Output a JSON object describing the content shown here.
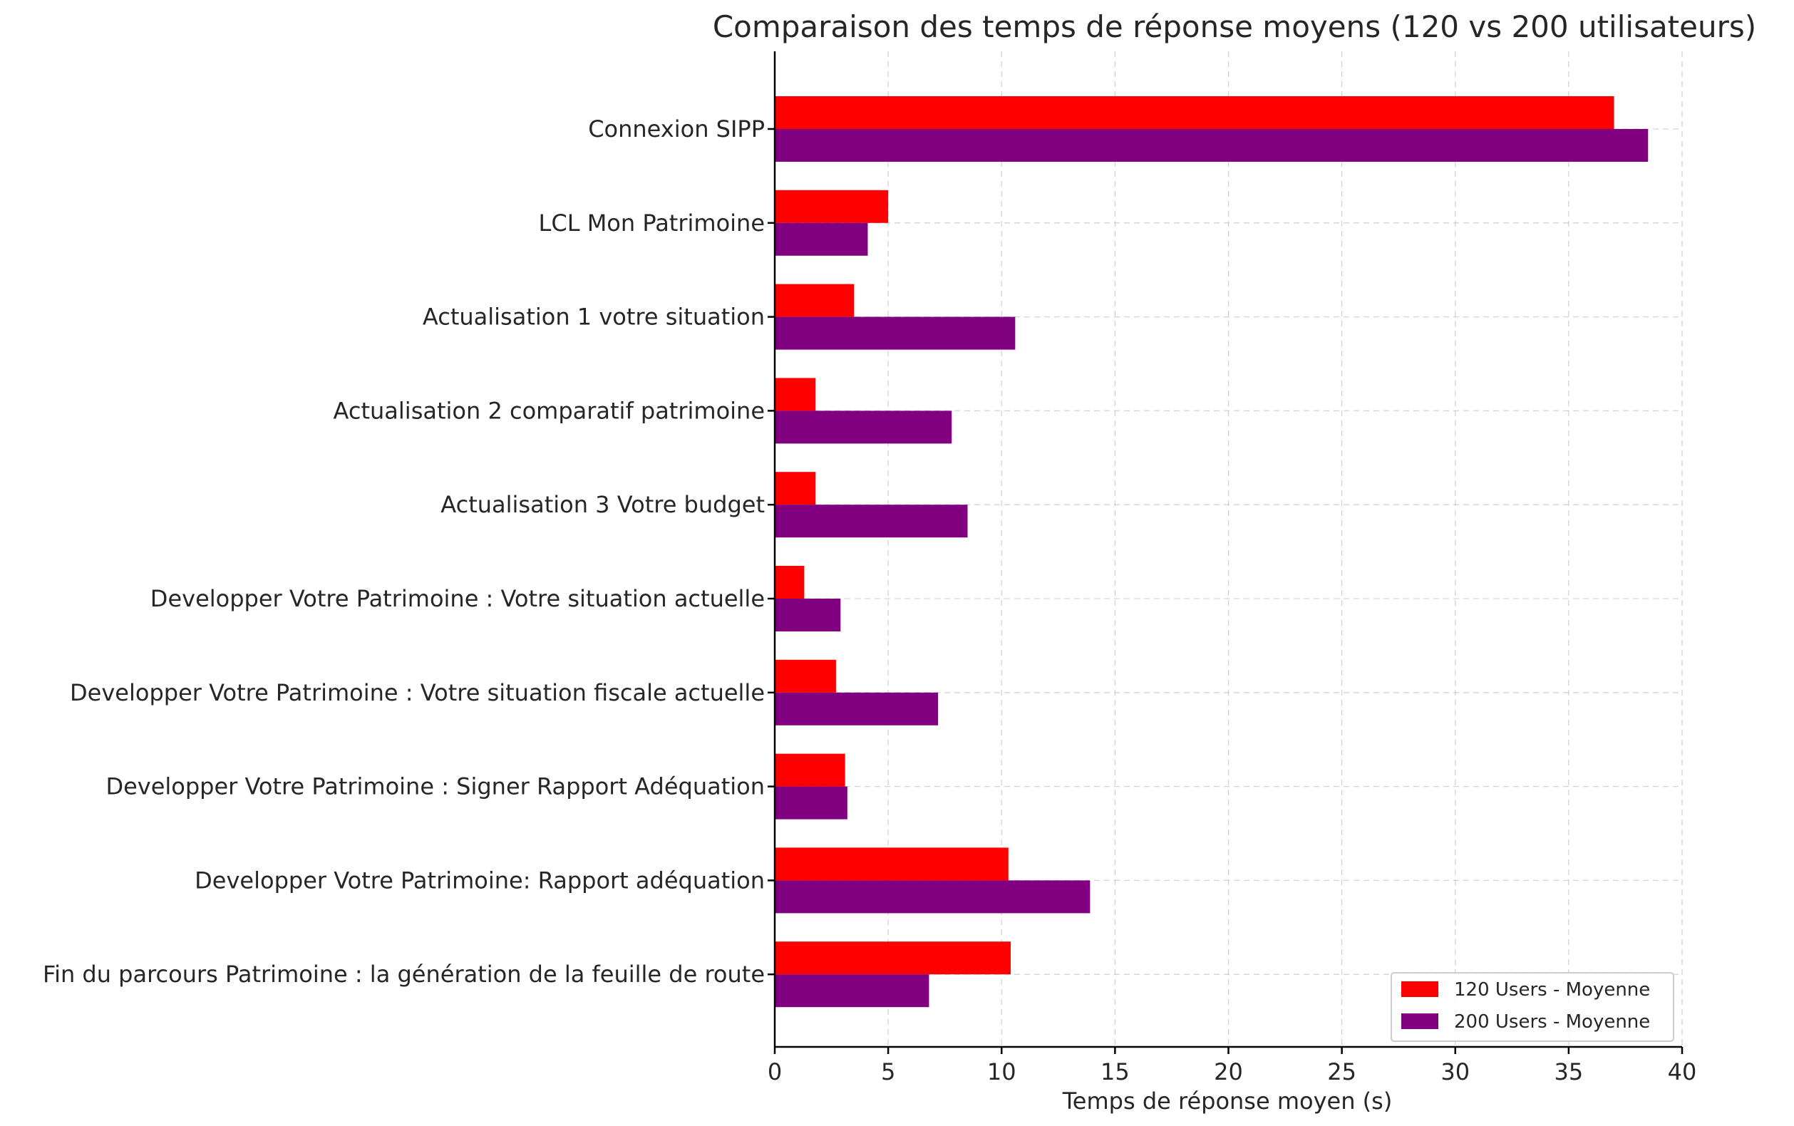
{
  "chart_data": {
    "type": "bar",
    "orientation": "horizontal",
    "title": "Comparaison des temps de réponse moyens (120 vs 200 utilisateurs)",
    "xlabel": "Temps de réponse moyen (s)",
    "ylabel": "",
    "xlim": [
      0,
      40
    ],
    "xticks": [
      0,
      5,
      10,
      15,
      20,
      25,
      30,
      35,
      40
    ],
    "grid": true,
    "legend_position": "bottom-right",
    "categories": [
      "Connexion SIPP",
      "LCL Mon Patrimoine",
      "Actualisation 1 votre situation",
      "Actualisation 2 comparatif patrimoine",
      "Actualisation 3 Votre budget",
      "Developper Votre Patrimoine : Votre situation actuelle",
      "Developper Votre Patrimoine : Votre situation fiscale actuelle",
      "Developper Votre Patrimoine : Signer Rapport Adéquation",
      "Developper Votre Patrimoine: Rapport adéquation",
      "Fin du parcours Patrimoine : la génération de la feuille de route"
    ],
    "series": [
      {
        "name": "120 Users - Moyenne",
        "color": "#ff0000",
        "values": [
          37.0,
          5.0,
          3.5,
          1.8,
          1.8,
          1.3,
          2.7,
          3.1,
          10.3,
          10.4
        ]
      },
      {
        "name": "200 Users - Moyenne",
        "color": "#800080",
        "values": [
          38.5,
          4.1,
          10.6,
          7.8,
          8.5,
          2.9,
          7.2,
          3.2,
          13.9,
          6.8
        ]
      }
    ]
  }
}
